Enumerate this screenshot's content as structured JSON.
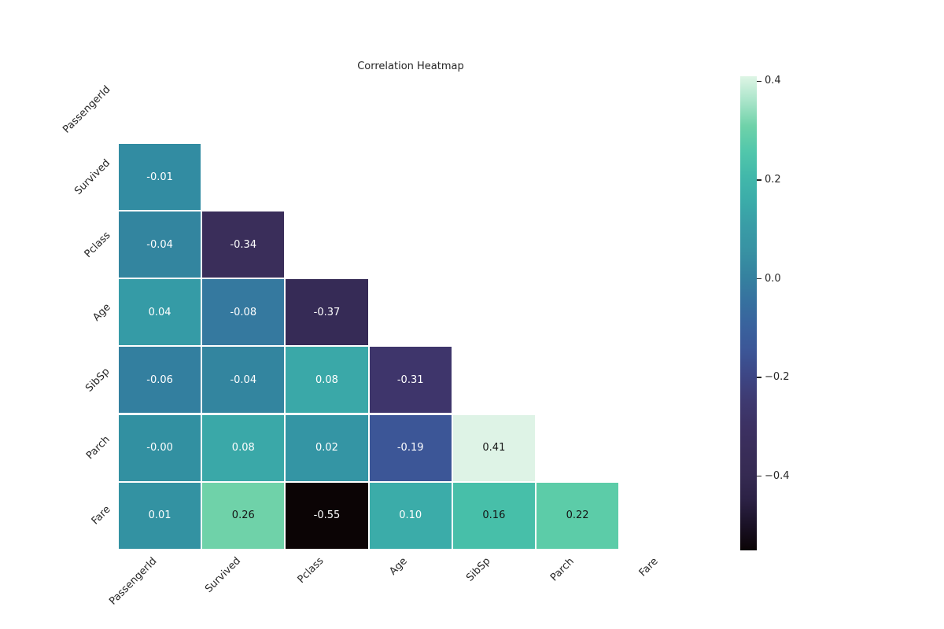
{
  "figure": {
    "background": "#ffffff"
  },
  "chart_data": {
    "type": "heatmap",
    "title": "Correlation Heatmap",
    "variables": [
      "PassengerId",
      "Survived",
      "Pclass",
      "Age",
      "SibSp",
      "Parch",
      "Fare"
    ],
    "mask": "upper triangle and diagonal hidden (lower-triangle correlation matrix)",
    "colormap": "mako",
    "vmin": -0.55,
    "vmax": 0.41,
    "grid": "white cell separator lines",
    "cells": [
      {
        "row": 1,
        "col": 0,
        "row_var": "Survived",
        "col_var": "PassengerId",
        "label": "-0.01",
        "value": -0.01,
        "bg": "#328CA2",
        "fg": "#ffffff"
      },
      {
        "row": 2,
        "col": 0,
        "row_var": "Pclass",
        "col_var": "PassengerId",
        "label": "-0.04",
        "value": -0.04,
        "bg": "#33859F",
        "fg": "#ffffff"
      },
      {
        "row": 2,
        "col": 1,
        "row_var": "Pclass",
        "col_var": "Survived",
        "label": "-0.34",
        "value": -0.34,
        "bg": "#3A2E5A",
        "fg": "#ffffff"
      },
      {
        "row": 3,
        "col": 0,
        "row_var": "Age",
        "col_var": "PassengerId",
        "label": "0.04",
        "value": 0.04,
        "bg": "#359BA6",
        "fg": "#ffffff"
      },
      {
        "row": 3,
        "col": 1,
        "row_var": "Age",
        "col_var": "Survived",
        "label": "-0.08",
        "value": -0.08,
        "bg": "#35799F",
        "fg": "#ffffff"
      },
      {
        "row": 3,
        "col": 2,
        "row_var": "Age",
        "col_var": "Pclass",
        "label": "-0.37",
        "value": -0.37,
        "bg": "#362B56",
        "fg": "#ffffff"
      },
      {
        "row": 4,
        "col": 0,
        "row_var": "SibSp",
        "col_var": "PassengerId",
        "label": "-0.06",
        "value": -0.06,
        "bg": "#337F9F",
        "fg": "#ffffff"
      },
      {
        "row": 4,
        "col": 1,
        "row_var": "SibSp",
        "col_var": "Survived",
        "label": "-0.04",
        "value": -0.04,
        "bg": "#33859F",
        "fg": "#ffffff"
      },
      {
        "row": 4,
        "col": 2,
        "row_var": "SibSp",
        "col_var": "Pclass",
        "label": "0.08",
        "value": 0.08,
        "bg": "#3AA8A8",
        "fg": "#ffffff"
      },
      {
        "row": 4,
        "col": 3,
        "row_var": "SibSp",
        "col_var": "Age",
        "label": "-0.31",
        "value": -0.31,
        "bg": "#3E356B",
        "fg": "#ffffff"
      },
      {
        "row": 5,
        "col": 0,
        "row_var": "Parch",
        "col_var": "PassengerId",
        "label": "-0.00",
        "value": 0.0,
        "bg": "#3290A1",
        "fg": "#ffffff"
      },
      {
        "row": 5,
        "col": 1,
        "row_var": "Parch",
        "col_var": "Survived",
        "label": "0.08",
        "value": 0.08,
        "bg": "#3AA8A8",
        "fg": "#ffffff"
      },
      {
        "row": 5,
        "col": 2,
        "row_var": "Parch",
        "col_var": "Pclass",
        "label": "0.02",
        "value": 0.02,
        "bg": "#3495A4",
        "fg": "#ffffff"
      },
      {
        "row": 5,
        "col": 3,
        "row_var": "Parch",
        "col_var": "Age",
        "label": "-0.19",
        "value": -0.19,
        "bg": "#3C5697",
        "fg": "#ffffff"
      },
      {
        "row": 5,
        "col": 4,
        "row_var": "Parch",
        "col_var": "SibSp",
        "label": "0.41",
        "value": 0.41,
        "bg": "#DEF3E6",
        "fg": "#151515"
      },
      {
        "row": 6,
        "col": 0,
        "row_var": "Fare",
        "col_var": "PassengerId",
        "label": "0.01",
        "value": 0.01,
        "bg": "#3392A2",
        "fg": "#ffffff"
      },
      {
        "row": 6,
        "col": 1,
        "row_var": "Fare",
        "col_var": "Survived",
        "label": "0.26",
        "value": 0.26,
        "bg": "#6FD2A9",
        "fg": "#151515"
      },
      {
        "row": 6,
        "col": 2,
        "row_var": "Fare",
        "col_var": "Pclass",
        "label": "-0.55",
        "value": -0.55,
        "bg": "#0B0405",
        "fg": "#ffffff"
      },
      {
        "row": 6,
        "col": 3,
        "row_var": "Fare",
        "col_var": "Age",
        "label": "0.10",
        "value": 0.1,
        "bg": "#3BACA9",
        "fg": "#ffffff"
      },
      {
        "row": 6,
        "col": 4,
        "row_var": "Fare",
        "col_var": "SibSp",
        "label": "0.16",
        "value": 0.16,
        "bg": "#47BFA9",
        "fg": "#151515"
      },
      {
        "row": 6,
        "col": 5,
        "row_var": "Fare",
        "col_var": "Parch",
        "label": "0.22",
        "value": 0.22,
        "bg": "#5CCCA8",
        "fg": "#151515"
      }
    ],
    "colorbar": {
      "position": "right",
      "ticks": [
        {
          "label": "0.4",
          "value": 0.4
        },
        {
          "label": "0.2",
          "value": 0.2
        },
        {
          "label": "0.0",
          "value": 0.0
        },
        {
          "label": "−0.2",
          "value": -0.2
        },
        {
          "label": "−0.4",
          "value": -0.4
        }
      ],
      "gradient_top_to_bottom": [
        "#DEF5E5",
        "#A8E4C9",
        "#6FD2A9",
        "#52C7AB",
        "#42B8AA",
        "#3BACA9",
        "#399CA6",
        "#3892A3",
        "#35829F",
        "#36719F",
        "#39629D",
        "#3C5697",
        "#3D4685",
        "#3E3A71",
        "#3C3163",
        "#392D59",
        "#352A52",
        "#2B2144",
        "#1A1126",
        "#0B0405"
      ]
    }
  }
}
